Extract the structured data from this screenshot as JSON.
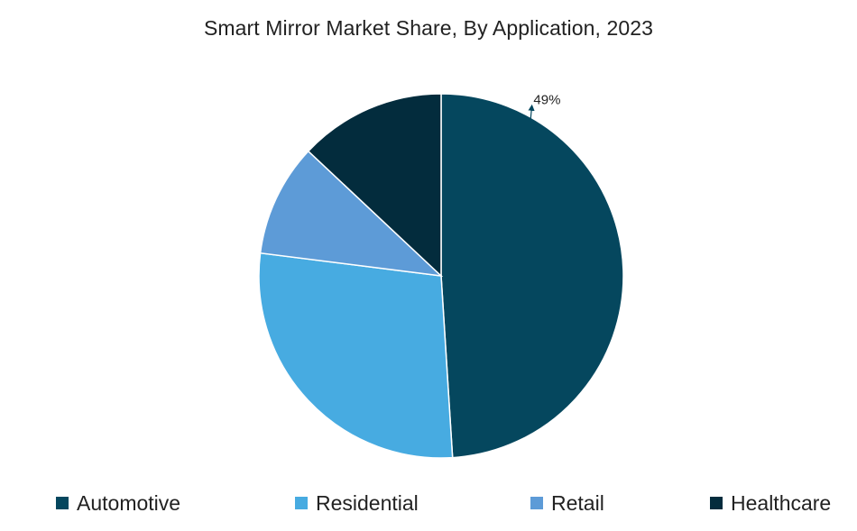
{
  "chart_data": {
    "type": "pie",
    "title": "Smart Mirror Market Share, By Application, 2023",
    "slices": [
      {
        "name": "Automotive",
        "value": 49,
        "color": "#05475e",
        "label": "49%"
      },
      {
        "name": "Residential",
        "value": 28,
        "color": "#47abe1",
        "label": ""
      },
      {
        "name": "Retail",
        "value": 10,
        "color": "#5d9bd7",
        "label": ""
      },
      {
        "name": "Healthcare",
        "value": 13,
        "color": "#032c3d",
        "label": ""
      }
    ],
    "legend_position": "bottom"
  }
}
